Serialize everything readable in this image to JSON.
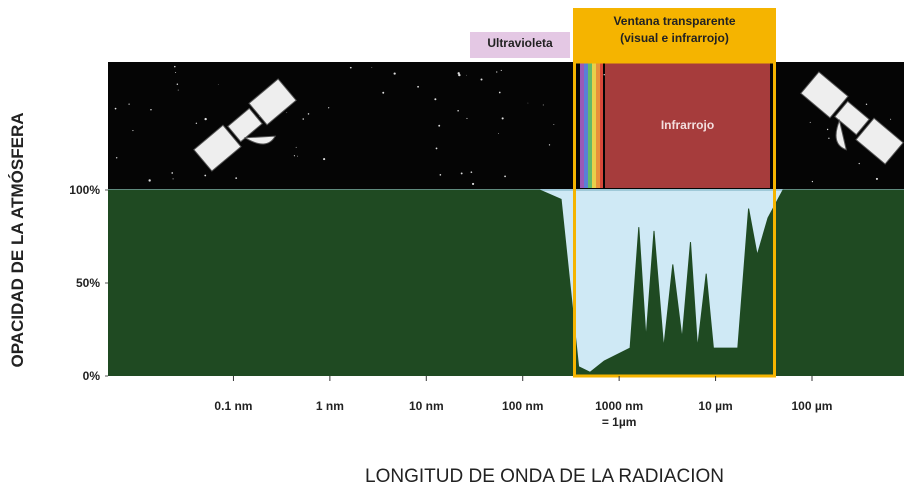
{
  "chart_data": {
    "type": "area",
    "y_label": "OPACIDAD DE LA ATMÓSFERA",
    "x_label": "LONGITUD DE ONDA DE LA RADIACION",
    "annotations": [
      "Ultravioleta",
      "Ventana transparente\n(visual e infrarrojo)",
      "Infrarrojo"
    ],
    "x_scale": "log",
    "xlim": [
      0.005,
      900000
    ],
    "xticks": [
      {
        "value": 0.1,
        "label": "0.1 nm"
      },
      {
        "value": 1,
        "label": "1 nm"
      },
      {
        "value": 10,
        "label": "10 nm"
      },
      {
        "value": 100,
        "label": "100 nm"
      },
      {
        "value": 1000,
        "label": "1000 nm\n= 1µm"
      },
      {
        "value": 10000,
        "label": "10 µm"
      },
      {
        "value": 100000,
        "label": "100 µm"
      }
    ],
    "ylim": [
      0,
      100
    ],
    "yticks": [
      {
        "value": 0,
        "label": "0%"
      },
      {
        "value": 50,
        "label": "50%"
      },
      {
        "value": 100,
        "label": "100%"
      }
    ],
    "color": "#1f4a22",
    "x": [
      0.005,
      150,
      250,
      380,
      500,
      700,
      1300,
      1600,
      1900,
      2300,
      2900,
      3600,
      4500,
      5500,
      6500,
      8000,
      9500,
      17000,
      22000,
      27000,
      35000,
      50000,
      900000
    ],
    "values": [
      100,
      100,
      95,
      5,
      2,
      8,
      15,
      80,
      20,
      78,
      15,
      60,
      20,
      72,
      15,
      55,
      15,
      15,
      90,
      65,
      85,
      100,
      100
    ]
  }
}
